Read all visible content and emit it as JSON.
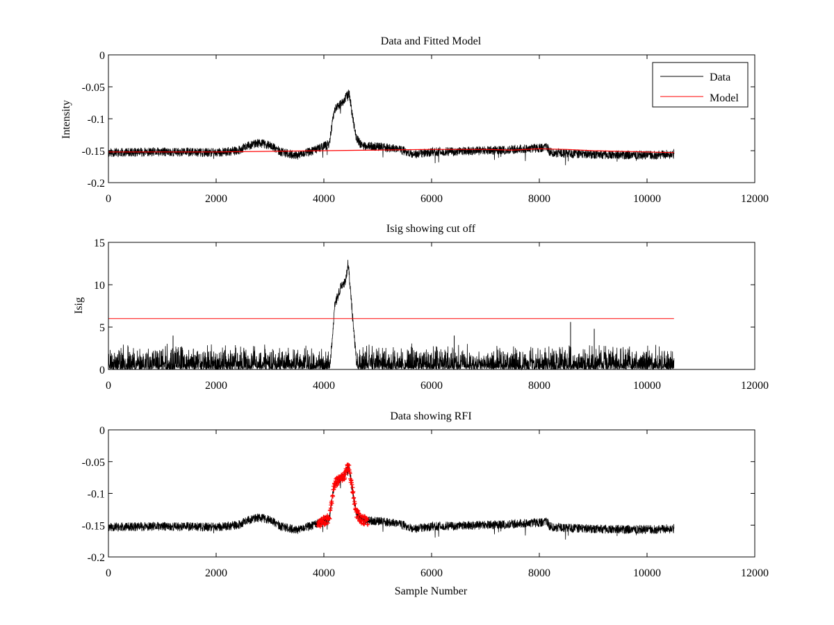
{
  "figure": {
    "background": "#ffffff",
    "colors": {
      "data": "#000000",
      "model": "#ff0000",
      "rfi": "#ff0000",
      "cutoff": "#ff0000"
    }
  },
  "chart_data": [
    {
      "type": "line",
      "title": "Data and Fitted Model",
      "xlabel": "",
      "ylabel": "Intensity",
      "xlim": [
        0,
        12000
      ],
      "ylim": [
        -0.2,
        0
      ],
      "xticks": [
        "0",
        "2000",
        "4000",
        "6000",
        "8000",
        "10000",
        "12000"
      ],
      "yticks": [
        "0",
        "-0.05",
        "-0.1",
        "-0.15",
        "-0.2"
      ],
      "legend": {
        "placement": "top-right",
        "entries": [
          "Data",
          "Model"
        ]
      },
      "series": [
        {
          "name": "Data",
          "color": "#000000",
          "n_samples": 10500,
          "baseline": [
            [
              0,
              -0.153
            ],
            [
              1000,
              -0.152
            ],
            [
              2000,
              -0.153
            ],
            [
              2400,
              -0.15
            ],
            [
              2600,
              -0.142
            ],
            [
              2800,
              -0.138
            ],
            [
              3000,
              -0.142
            ],
            [
              3200,
              -0.152
            ],
            [
              3500,
              -0.158
            ],
            [
              3800,
              -0.15
            ],
            [
              4000,
              -0.143
            ],
            [
              4100,
              -0.14
            ],
            [
              4150,
              -0.11
            ],
            [
              4200,
              -0.085
            ],
            [
              4300,
              -0.078
            ],
            [
              4380,
              -0.072
            ],
            [
              4430,
              -0.062
            ],
            [
              4470,
              -0.06
            ],
            [
              4520,
              -0.09
            ],
            [
              4600,
              -0.13
            ],
            [
              4700,
              -0.142
            ],
            [
              5000,
              -0.144
            ],
            [
              5400,
              -0.148
            ],
            [
              5700,
              -0.156
            ],
            [
              6000,
              -0.152
            ],
            [
              7000,
              -0.15
            ],
            [
              8000,
              -0.146
            ],
            [
              8150,
              -0.145
            ],
            [
              8200,
              -0.153
            ],
            [
              9000,
              -0.156
            ],
            [
              10000,
              -0.157
            ],
            [
              10500,
              -0.155
            ]
          ],
          "noise_amplitude": 0.007
        },
        {
          "name": "Model",
          "color": "#ff0000",
          "points": [
            [
              0,
              -0.152
            ],
            [
              2000,
              -0.152
            ],
            [
              3000,
              -0.151
            ],
            [
              4000,
              -0.15
            ],
            [
              5000,
              -0.149
            ],
            [
              6000,
              -0.148
            ],
            [
              7000,
              -0.148
            ],
            [
              7500,
              -0.149
            ],
            [
              8000,
              -0.147
            ],
            [
              8500,
              -0.148
            ],
            [
              9000,
              -0.15
            ],
            [
              10000,
              -0.152
            ],
            [
              10500,
              -0.153
            ]
          ]
        }
      ]
    },
    {
      "type": "line",
      "title": "Isig showing cut off",
      "xlabel": "",
      "ylabel": "Isig",
      "xlim": [
        0,
        12000
      ],
      "ylim": [
        0,
        15
      ],
      "xticks": [
        "0",
        "2000",
        "4000",
        "6000",
        "8000",
        "10000",
        "12000"
      ],
      "yticks": [
        "0",
        "5",
        "10",
        "15"
      ],
      "series": [
        {
          "name": "Isig",
          "color": "#000000",
          "n_samples": 10500,
          "peak": [
            [
              4100,
              0
            ],
            [
              4150,
              3
            ],
            [
              4200,
              7.5
            ],
            [
              4300,
              9.5
            ],
            [
              4400,
              10.5
            ],
            [
              4450,
              12.5
            ],
            [
              4500,
              9
            ],
            [
              4560,
              4
            ],
            [
              4620,
              0
            ]
          ],
          "noise_max": 4.2,
          "spikes": [
            [
              8580,
              5.6
            ],
            [
              9020,
              4.8
            ],
            [
              6420,
              4.0
            ],
            [
              1200,
              4.0
            ]
          ]
        },
        {
          "name": "Cut off",
          "color": "#ff0000",
          "points": [
            [
              0,
              6
            ],
            [
              10500,
              6
            ]
          ]
        }
      ]
    },
    {
      "type": "line",
      "title": "Data showing RFI",
      "xlabel": "Sample Number",
      "ylabel": "",
      "xlim": [
        0,
        12000
      ],
      "ylim": [
        -0.2,
        0
      ],
      "xticks": [
        "0",
        "2000",
        "4000",
        "6000",
        "8000",
        "10000",
        "12000"
      ],
      "yticks": [
        "0",
        "-0.05",
        "-0.1",
        "-0.15",
        "-0.2"
      ],
      "series": [
        {
          "name": "Data",
          "color": "#000000",
          "n_samples": 10500,
          "baseline_ref": 0,
          "noise_amplitude": 0.007
        },
        {
          "name": "RFI",
          "color": "#ff0000",
          "marker": "+",
          "range": [
            3880,
            4820
          ]
        }
      ]
    }
  ]
}
